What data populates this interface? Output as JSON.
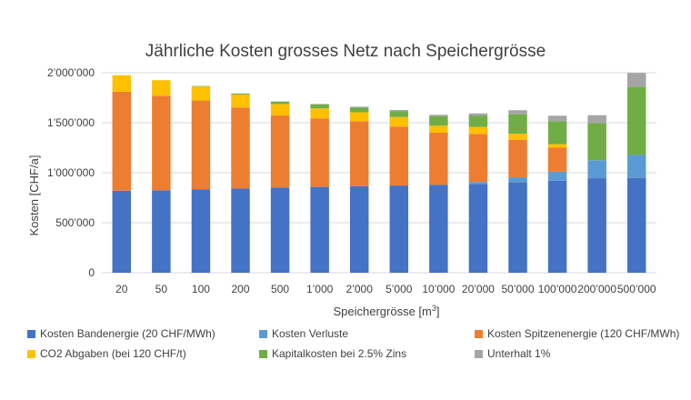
{
  "chart_data": {
    "type": "bar",
    "stacked": true,
    "title": "Jährliche Kosten grosses Netz nach Speichergrösse",
    "xlabel_main": "Speichergrösse [m",
    "xlabel_sup": "3",
    "xlabel_end": "]",
    "ylabel": "Kosten [CHF/a]",
    "ylim": [
      0,
      2000000
    ],
    "yticks": [
      0,
      500000,
      1000000,
      1500000,
      2000000
    ],
    "ytick_labels": [
      "0",
      "500’000",
      "1’000’000",
      "1’500’000",
      "2’000’000"
    ],
    "grid": true,
    "legend_position": "bottom",
    "categories": [
      "20",
      "50",
      "100",
      "200",
      "500",
      "1’000",
      "2’000",
      "5’000",
      "10’000",
      "20’000",
      "50’000",
      "100’000",
      "200’000",
      "500’000"
    ],
    "series": [
      {
        "name": "Kosten Bandenergie (20 CHF/MWh)",
        "color": "#4472C4",
        "values": [
          820000,
          825000,
          832000,
          842000,
          852000,
          858000,
          865000,
          872000,
          880000,
          888000,
          900000,
          920000,
          945000,
          948000
        ]
      },
      {
        "name": "Kosten Verluste",
        "color": "#5B9BD5",
        "values": [
          0,
          0,
          0,
          0,
          0,
          0,
          0,
          0,
          0,
          20000,
          55000,
          90000,
          180000,
          230000
        ]
      },
      {
        "name": "Kosten Spitzenenergie (120 CHF/MWh)",
        "color": "#ED7D31",
        "values": [
          990000,
          945000,
          890000,
          810000,
          720000,
          685000,
          650000,
          590000,
          520000,
          480000,
          375000,
          240000,
          0,
          0
        ]
      },
      {
        "name": "CO2 Abgaben (bei 120 CHF/t)",
        "color": "#FFC000",
        "values": [
          165000,
          155000,
          140000,
          130000,
          115000,
          100000,
          90000,
          95000,
          70000,
          70000,
          60000,
          35000,
          0,
          0
        ]
      },
      {
        "name": "Kapitalkosten bei 2.5% Zins",
        "color": "#70AD47",
        "values": [
          0,
          0,
          5000,
          10000,
          25000,
          40000,
          45000,
          60000,
          95000,
          110000,
          195000,
          230000,
          370000,
          680000
        ]
      },
      {
        "name": "Unterhalt 1%",
        "color": "#A5A5A5",
        "values": [
          0,
          0,
          0,
          0,
          0,
          5000,
          10000,
          10000,
          15000,
          25000,
          40000,
          55000,
          80000,
          140000
        ]
      }
    ]
  }
}
